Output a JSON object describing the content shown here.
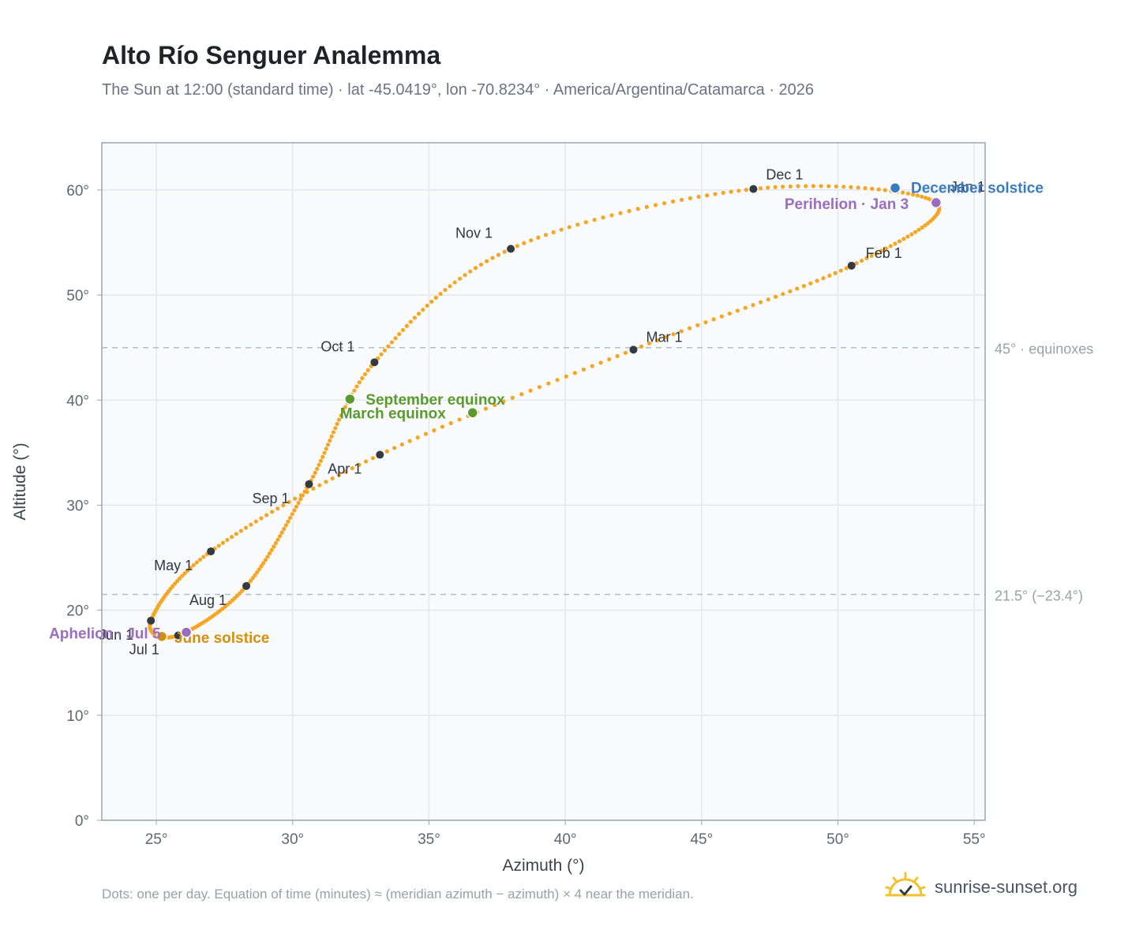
{
  "header": {
    "title": "Alto Río Senguer Analemma",
    "subtitle": "The Sun at 12:00 (standard time) · lat -45.0419°, lon -70.8234° · America/Argentina/Catamarca · 2026"
  },
  "footer": {
    "note": "Dots: one per day. Equation of time (minutes) ≈ (meridian azimuth − azimuth) × 4 near the meridian.",
    "brand": "sunrise-sunset.org",
    "brand_icon": "sun-icon"
  },
  "chart_data": {
    "type": "scatter",
    "title": "Alto Río Senguer Analemma",
    "xlabel": "Azimuth (°)",
    "ylabel": "Altitude (°)",
    "xlim": [
      23,
      55.4
    ],
    "ylim": [
      0,
      64.5
    ],
    "xticks": [
      {
        "value": 25,
        "label": "25°"
      },
      {
        "value": 30,
        "label": "30°"
      },
      {
        "value": 35,
        "label": "35°"
      },
      {
        "value": 40,
        "label": "40°"
      },
      {
        "value": 45,
        "label": "45°"
      },
      {
        "value": 50,
        "label": "50°"
      },
      {
        "value": 55,
        "label": "55°"
      }
    ],
    "yticks": [
      {
        "value": 0,
        "label": "0°"
      },
      {
        "value": 10,
        "label": "10°"
      },
      {
        "value": 20,
        "label": "20°"
      },
      {
        "value": 30,
        "label": "30°"
      },
      {
        "value": 40,
        "label": "40°"
      },
      {
        "value": 50,
        "label": "50°"
      },
      {
        "value": 60,
        "label": "60°"
      }
    ],
    "grid": true,
    "colors": {
      "dots": "#f5a623",
      "month_marker": "#343a40",
      "equinox": "#5a9a2e",
      "december_solstice": "#3a7bbf",
      "june_solstice": "#d4900d",
      "apsis": "#9b6dbf",
      "reference": "#b0bec9",
      "plot_bg": "#f8fafc"
    },
    "reference_lines": [
      {
        "value": 45,
        "label": "45° · equinoxes"
      },
      {
        "value": 21.5,
        "label": "21.5° (−23.4°)"
      }
    ],
    "months": [
      {
        "label": "Jan 1",
        "az": 53.6,
        "alt": 58.8
      },
      {
        "label": "Feb 1",
        "az": 50.5,
        "alt": 52.8
      },
      {
        "label": "Mar 1",
        "az": 42.5,
        "alt": 44.8
      },
      {
        "label": "Apr 1",
        "az": 33.2,
        "alt": 34.8
      },
      {
        "label": "May 1",
        "az": 27.0,
        "alt": 25.6
      },
      {
        "label": "Jun 1",
        "az": 24.8,
        "alt": 19.0
      },
      {
        "label": "Jul 1",
        "az": 25.8,
        "alt": 17.6
      },
      {
        "label": "Aug 1",
        "az": 28.3,
        "alt": 22.3
      },
      {
        "label": "Sep 1",
        "az": 30.6,
        "alt": 32.0
      },
      {
        "label": "Oct 1",
        "az": 33.0,
        "alt": 43.6
      },
      {
        "label": "Nov 1",
        "az": 38.0,
        "alt": 54.4
      },
      {
        "label": "Dec 1",
        "az": 46.9,
        "alt": 60.1
      }
    ],
    "events": [
      {
        "label": "March equinox",
        "az": 36.6,
        "alt": 38.8,
        "kind": "equinox"
      },
      {
        "label": "September equinox",
        "az": 32.1,
        "alt": 40.1,
        "kind": "equinox"
      },
      {
        "label": "December solstice",
        "az": 52.1,
        "alt": 60.2,
        "kind": "december_solstice"
      },
      {
        "label": "June solstice",
        "az": 25.2,
        "alt": 17.5,
        "kind": "june_solstice"
      },
      {
        "label": "Perihelion · Jan 3",
        "az": 53.6,
        "alt": 58.8,
        "kind": "apsis"
      },
      {
        "label": "Aphelion · Jul 5",
        "az": 26.1,
        "alt": 17.9,
        "kind": "apsis"
      }
    ]
  }
}
